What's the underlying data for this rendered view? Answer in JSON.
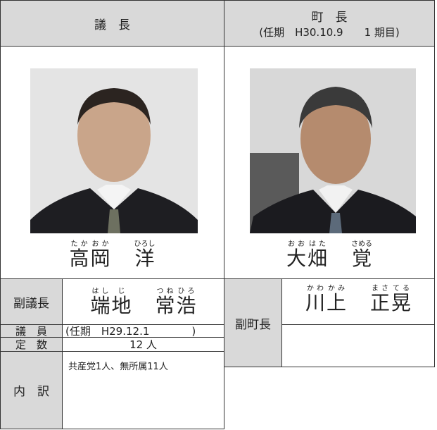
{
  "chair": {
    "header": "議　長",
    "name": {
      "family": [
        {
          "kanji": "高",
          "ruby": "たか"
        },
        {
          "kanji": "岡",
          "ruby": "おか"
        }
      ],
      "given": [
        {
          "kanji": "洋",
          "ruby": "ひろし"
        }
      ]
    }
  },
  "mayor": {
    "header": "町　長",
    "term": "(任期　H30.10.9　　1 期目)",
    "name": {
      "family": [
        {
          "kanji": "大",
          "ruby": "おお"
        },
        {
          "kanji": "畑",
          "ruby": "はた"
        }
      ],
      "given": [
        {
          "kanji": "覚",
          "ruby": "さめる"
        }
      ]
    }
  },
  "vice_chair": {
    "label": "副議長",
    "name": {
      "family": [
        {
          "kanji": "端",
          "ruby": "はし"
        },
        {
          "kanji": "地",
          "ruby": "じ"
        }
      ],
      "given": [
        {
          "kanji": "常",
          "ruby": "つね"
        },
        {
          "kanji": "浩",
          "ruby": "ひろ"
        }
      ]
    }
  },
  "vice_mayor": {
    "label": "副町長",
    "name": {
      "family": [
        {
          "kanji": "川",
          "ruby": "かわ"
        },
        {
          "kanji": "上",
          "ruby": "かみ"
        }
      ],
      "given": [
        {
          "kanji": "正",
          "ruby": "まさ"
        },
        {
          "kanji": "晃",
          "ruby": "てる"
        }
      ]
    }
  },
  "members": {
    "label": "議　員",
    "term": "(任期　H29.12.1　　　　)"
  },
  "seats": {
    "label": "定　数",
    "value": "12 人"
  },
  "breakdown": {
    "label": "内　訳",
    "value": "共産党1人、無所属11人"
  }
}
